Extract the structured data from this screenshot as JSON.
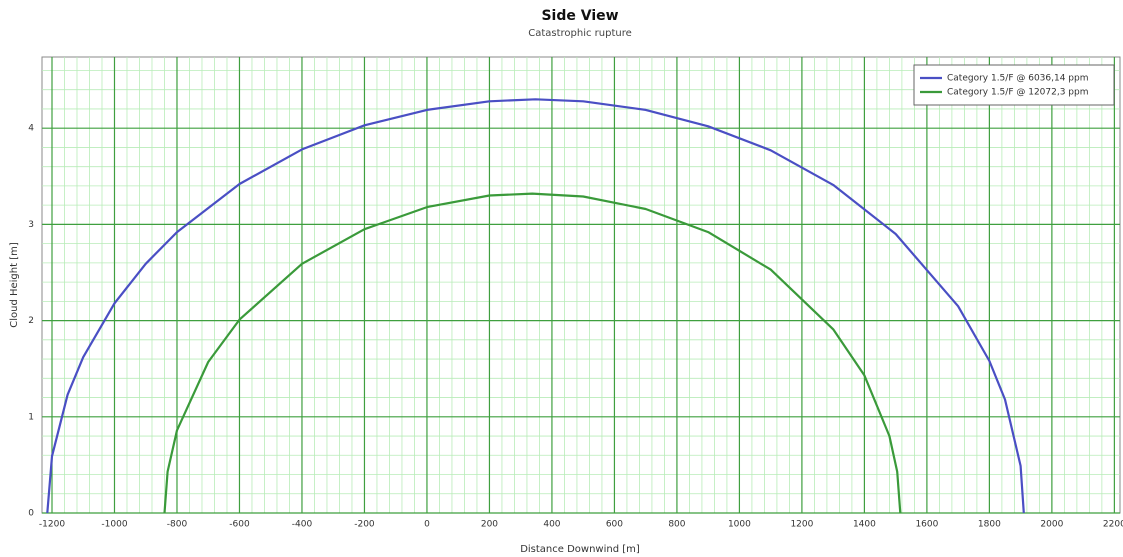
{
  "chart_data": {
    "type": "line",
    "title": "Side View",
    "subtitle": "Catastrophic rupture",
    "xlabel": "Distance Downwind [m]",
    "ylabel": "Cloud Height [m]",
    "xlim": [
      -1232,
      2218
    ],
    "ylim": [
      0,
      4.74
    ],
    "xticks": [
      -1200,
      -1000,
      -800,
      -600,
      -400,
      -200,
      0,
      200,
      400,
      600,
      800,
      1000,
      1200,
      1400,
      1600,
      1800,
      2000,
      2200
    ],
    "yticks": [
      0,
      1,
      2,
      3,
      4
    ],
    "grid": true,
    "minor_grid": true,
    "legend": "upper right",
    "series": [
      {
        "name": "Category 1.5/F @ 6036,14 ppm",
        "color": "#4a4fc4",
        "x": [
          -1215,
          -1200,
          -1150,
          -1100,
          -1000,
          -900,
          -800,
          -600,
          -400,
          -200,
          0,
          200,
          347,
          500,
          700,
          900,
          1100,
          1300,
          1500,
          1700,
          1800,
          1850,
          1900,
          1910
        ],
        "values": [
          0,
          0.59,
          1.23,
          1.62,
          2.18,
          2.59,
          2.92,
          3.42,
          3.78,
          4.03,
          4.19,
          4.28,
          4.3,
          4.28,
          4.19,
          4.02,
          3.77,
          3.41,
          2.9,
          2.15,
          1.58,
          1.18,
          0.49,
          0
        ]
      },
      {
        "name": "Category 1.5/F @ 12072,3 ppm",
        "color": "#3a9a3a",
        "x": [
          -840,
          -830,
          -800,
          -700,
          -600,
          -400,
          -200,
          0,
          200,
          337,
          500,
          700,
          900,
          1100,
          1300,
          1400,
          1480,
          1505,
          1515
        ],
        "values": [
          0,
          0.43,
          0.86,
          1.57,
          2.01,
          2.59,
          2.95,
          3.18,
          3.3,
          3.32,
          3.29,
          3.16,
          2.92,
          2.53,
          1.91,
          1.43,
          0.8,
          0.43,
          0
        ]
      }
    ]
  }
}
